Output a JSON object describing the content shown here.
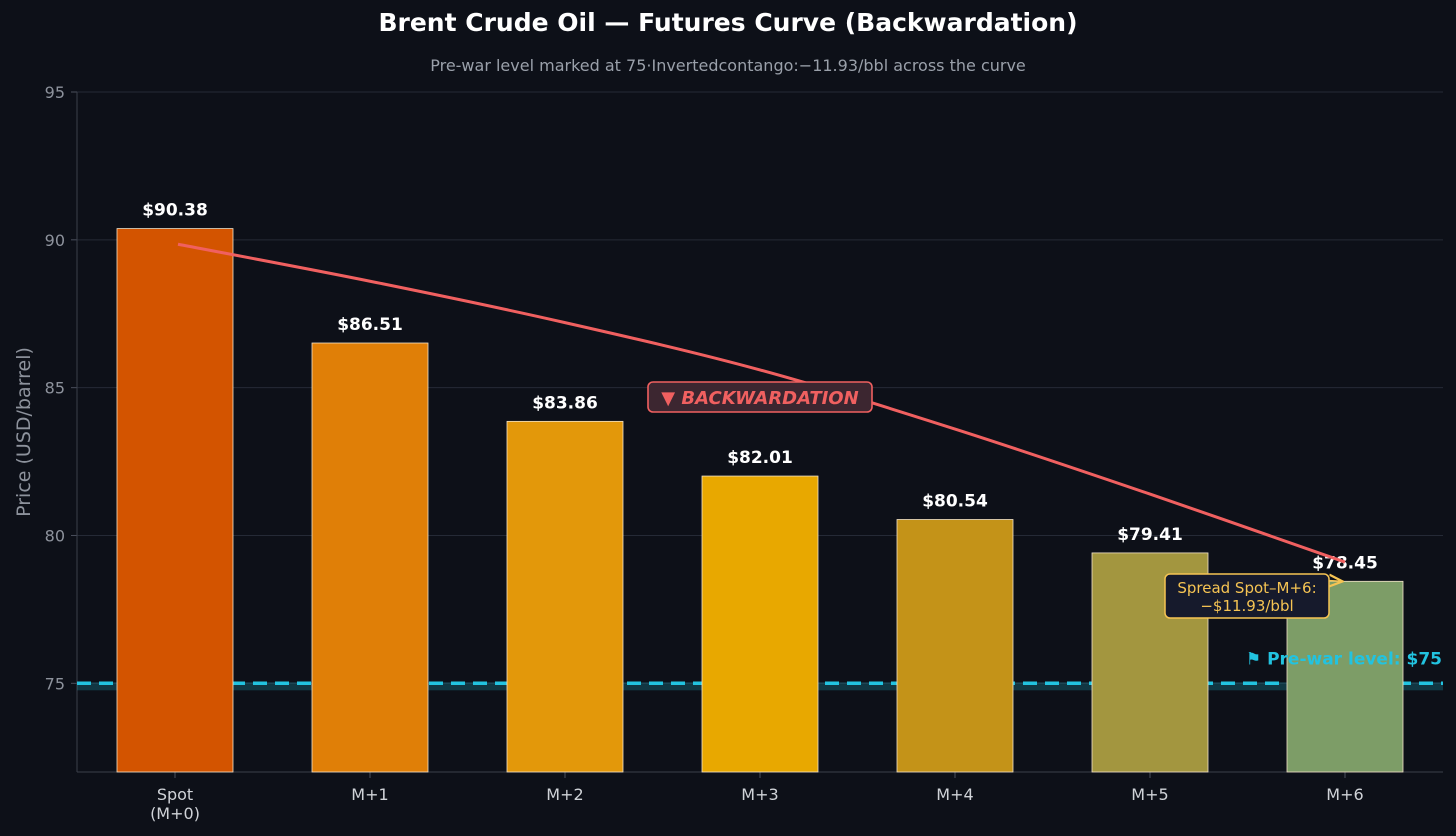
{
  "chart_data": {
    "type": "bar",
    "title": "Brent Crude Oil — Futures Curve (Backwardation)",
    "subtitle": "Pre-war level marked at 75·Invertedcontango:−11.93/bbl across the curve",
    "xlabel": "",
    "ylabel": "Price (USD/barrel)",
    "ylim": [
      72,
      95
    ],
    "yticks": [
      75,
      80,
      85,
      90,
      95
    ],
    "grid": true,
    "categories": [
      "Spot\n(M+0)",
      "M+1",
      "M+2",
      "M+3",
      "M+4",
      "M+5",
      "M+6"
    ],
    "values": [
      90.38,
      86.51,
      83.86,
      82.01,
      80.54,
      79.41,
      78.45
    ],
    "data_labels": [
      "$90.38",
      "$86.51",
      "$83.86",
      "$82.01",
      "$80.54",
      "$79.41",
      "$78.45"
    ],
    "bar_colors": [
      "#d35400",
      "#e07f07",
      "#e3980a",
      "#e8a800",
      "#c49318",
      "#a3963f",
      "#7d9d67"
    ],
    "trend_line": {
      "label": "▼ BACKWARDATION",
      "color": "#f06060",
      "values": [
        89.85,
        88.6,
        87.2,
        85.6,
        83.6,
        81.4,
        79.1
      ]
    },
    "reference_line": {
      "value": 75,
      "label": "⚑  Pre-war level: $75",
      "color": "#22c3e0"
    },
    "spread_annotation": {
      "text_line1": "Spread Spot–M+6:",
      "text_line2": "−$11.93/bbl",
      "target_category": "M+6",
      "color": "#f6c453"
    }
  }
}
